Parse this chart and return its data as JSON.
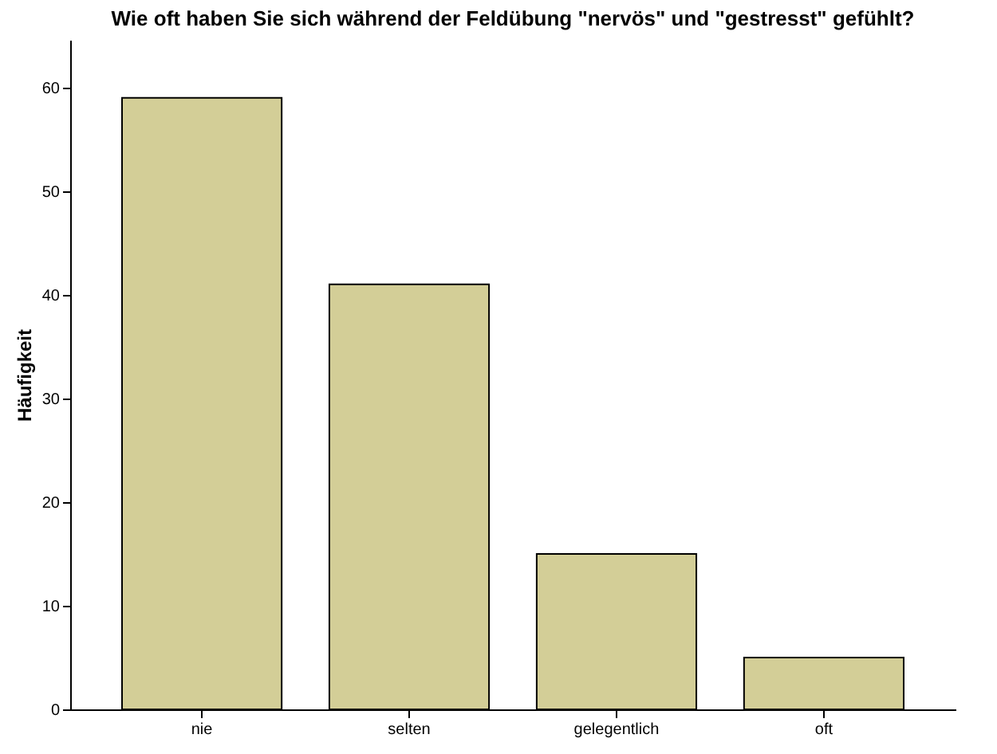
{
  "chart_data": {
    "type": "bar",
    "title": "Wie oft haben Sie sich während der Feldübung \"nervös\" und \"gestresst\" gefühlt?",
    "ylabel": "Häufigkeit",
    "categories": [
      "nie",
      "selten",
      "gelegentlich",
      "oft"
    ],
    "values": [
      59,
      41,
      15,
      5
    ],
    "color": "#d3ce97",
    "ylim": [
      0,
      64.6
    ],
    "yticks": [
      0,
      10,
      20,
      30,
      40,
      50,
      60
    ],
    "grid": false
  }
}
